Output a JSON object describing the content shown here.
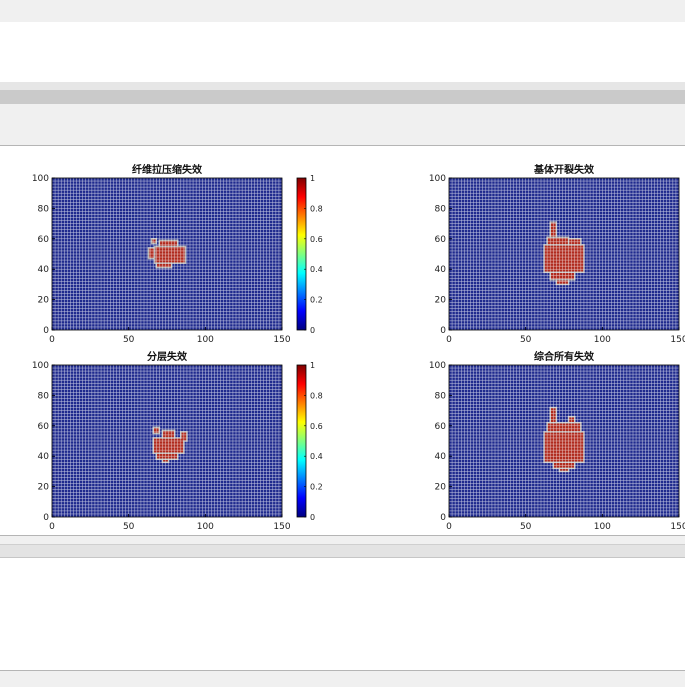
{
  "chart_data": [
    {
      "type": "heatmap",
      "title": "纤维拉压缩失效",
      "xlim": [
        0,
        150
      ],
      "ylim": [
        0,
        100
      ],
      "xticks": [
        "0",
        "50",
        "100",
        "150"
      ],
      "yticks": [
        "0",
        "20",
        "40",
        "60",
        "80",
        "100"
      ],
      "colorbar": true,
      "colorbar_ticks": [
        "0",
        "0.2",
        "0.4",
        "0.6",
        "0.8",
        "1"
      ],
      "clim": [
        0,
        1
      ],
      "background_value": 0,
      "damage_value": 1,
      "damage_region": [
        {
          "x": 67,
          "y": 44,
          "w": 20,
          "h": 11
        },
        {
          "x": 63,
          "y": 47,
          "w": 4,
          "h": 7
        },
        {
          "x": 70,
          "y": 55,
          "w": 12,
          "h": 4
        },
        {
          "x": 68,
          "y": 41,
          "w": 10,
          "h": 3
        },
        {
          "x": 65,
          "y": 57,
          "w": 3,
          "h": 3
        }
      ]
    },
    {
      "type": "heatmap",
      "title": "基体开裂失效",
      "xlim": [
        0,
        150
      ],
      "ylim": [
        0,
        100
      ],
      "xticks": [
        "0",
        "50",
        "100",
        "150"
      ],
      "yticks": [
        "0",
        "20",
        "40",
        "60",
        "80",
        "100"
      ],
      "colorbar": false,
      "clim": [
        0,
        1
      ],
      "background_value": 0,
      "damage_value": 1,
      "damage_region": [
        {
          "x": 62,
          "y": 38,
          "w": 26,
          "h": 18
        },
        {
          "x": 66,
          "y": 33,
          "w": 16,
          "h": 5
        },
        {
          "x": 70,
          "y": 30,
          "w": 8,
          "h": 3
        },
        {
          "x": 64,
          "y": 56,
          "w": 14,
          "h": 5
        },
        {
          "x": 66,
          "y": 61,
          "w": 4,
          "h": 10
        },
        {
          "x": 78,
          "y": 56,
          "w": 8,
          "h": 4
        }
      ]
    },
    {
      "type": "heatmap",
      "title": "分层失效",
      "xlim": [
        0,
        150
      ],
      "ylim": [
        0,
        100
      ],
      "xticks": [
        "0",
        "50",
        "100",
        "150"
      ],
      "yticks": [
        "0",
        "20",
        "40",
        "60",
        "80",
        "100"
      ],
      "colorbar": true,
      "colorbar_ticks": [
        "0",
        "0.2",
        "0.4",
        "0.6",
        "0.8",
        "1"
      ],
      "clim": [
        0,
        1
      ],
      "background_value": 0,
      "damage_value": 1,
      "damage_region": [
        {
          "x": 66,
          "y": 42,
          "w": 20,
          "h": 10
        },
        {
          "x": 68,
          "y": 38,
          "w": 14,
          "h": 4
        },
        {
          "x": 72,
          "y": 52,
          "w": 8,
          "h": 5
        },
        {
          "x": 66,
          "y": 55,
          "w": 4,
          "h": 4
        },
        {
          "x": 84,
          "y": 50,
          "w": 4,
          "h": 6
        },
        {
          "x": 72,
          "y": 36,
          "w": 4,
          "h": 2
        }
      ]
    },
    {
      "type": "heatmap",
      "title": "综合所有失效",
      "xlim": [
        0,
        150
      ],
      "ylim": [
        0,
        100
      ],
      "xticks": [
        "0",
        "50",
        "100",
        "150"
      ],
      "yticks": [
        "0",
        "20",
        "40",
        "60",
        "80",
        "100"
      ],
      "colorbar": false,
      "clim": [
        0,
        1
      ],
      "background_value": 0,
      "damage_value": 1,
      "damage_region": [
        {
          "x": 62,
          "y": 36,
          "w": 26,
          "h": 20
        },
        {
          "x": 68,
          "y": 32,
          "w": 14,
          "h": 4
        },
        {
          "x": 72,
          "y": 30,
          "w": 6,
          "h": 2
        },
        {
          "x": 64,
          "y": 56,
          "w": 16,
          "h": 6
        },
        {
          "x": 66,
          "y": 62,
          "w": 4,
          "h": 10
        },
        {
          "x": 76,
          "y": 56,
          "w": 10,
          "h": 6
        },
        {
          "x": 78,
          "y": 62,
          "w": 4,
          "h": 4
        }
      ]
    }
  ],
  "colors": {
    "background": "#1f2a8e",
    "grid": "#ffffff",
    "damage": "#b02a1e",
    "damage_edge": "#b0b0b0",
    "axis": "#000000"
  }
}
